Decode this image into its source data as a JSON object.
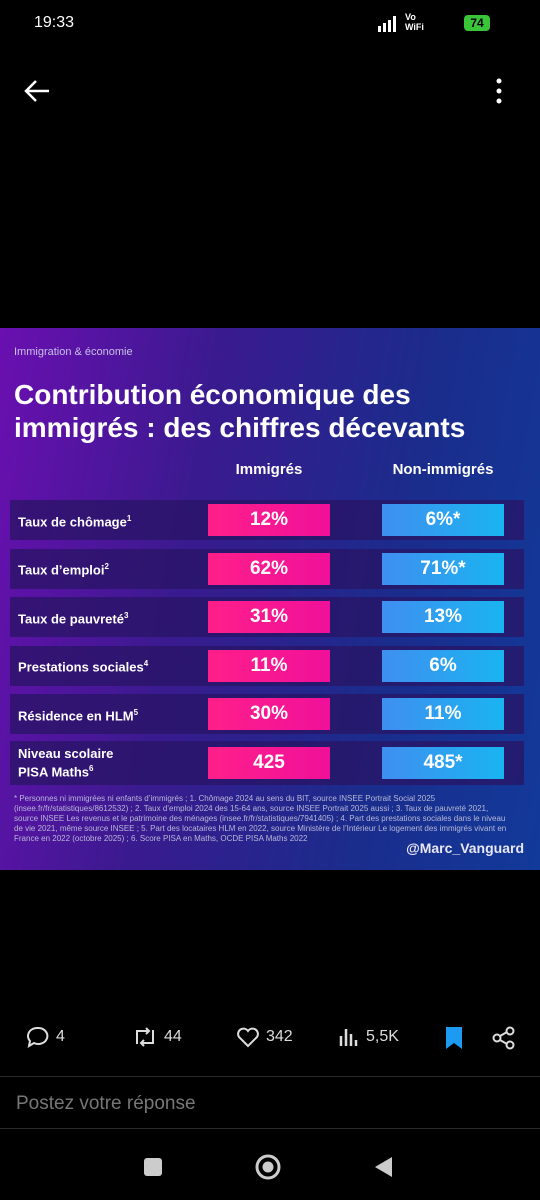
{
  "status_bar": {
    "time": "19:33",
    "network": [
      "Vo",
      "WiFi"
    ],
    "battery": "74"
  },
  "infographic": {
    "kicker": "Immigration & économie",
    "title": "Contribution économique des immigrés : des chiffres décevants",
    "columns": [
      "Immigrés",
      "Non-immigrés"
    ],
    "rows": [
      {
        "label_lines": [
          "Taux de chômage"
        ],
        "note": "1",
        "immigres": "12%",
        "non_immigres": "6%*"
      },
      {
        "label_lines": [
          "Taux d’emploi"
        ],
        "note": "2",
        "immigres": "62%",
        "non_immigres": "71%*"
      },
      {
        "label_lines": [
          "Taux de pauvreté"
        ],
        "note": "3",
        "immigres": "31%",
        "non_immigres": "13%"
      },
      {
        "label_lines": [
          "Prestations sociales"
        ],
        "note": "4",
        "immigres": "11%",
        "non_immigres": "6%"
      },
      {
        "label_lines": [
          "Résidence en HLM"
        ],
        "note": "5",
        "immigres": "30%",
        "non_immigres": "11%"
      },
      {
        "label_lines": [
          "Niveau scolaire",
          "PISA Maths"
        ],
        "note": "6",
        "immigres": "425",
        "non_immigres": "485*"
      }
    ],
    "footnote": "* Personnes ni immigrées ni enfants d’immigrés ; 1. Chômage 2024 au sens du BIT, source INSEE Portrait Social 2025 (insee.fr/fr/statistiques/8612532) ; 2. Taux d’emploi 2024 des 15-64 ans, source INSEE Portrait 2025 aussi ; 3. Taux de pauvreté 2021, source INSEE Les revenus et le patrimoine des ménages (insee.fr/fr/statistiques/7941405) ; 4. Part des prestations sociales dans le niveau de vie 2021, même source INSEE ; 5. Part des locataires HLM en 2022, source Ministère de l’Intérieur Le logement des immigrés vivant en France en 2022 (octobre 2025) ; 6. Score PISA en Maths, OCDE PISA Maths 2022",
    "handle": "@Marc_Vanguard"
  },
  "actions": {
    "replies": "4",
    "reposts": "44",
    "likes": "342",
    "views": "5,5K"
  },
  "reply_placeholder": "Postez votre réponse"
}
